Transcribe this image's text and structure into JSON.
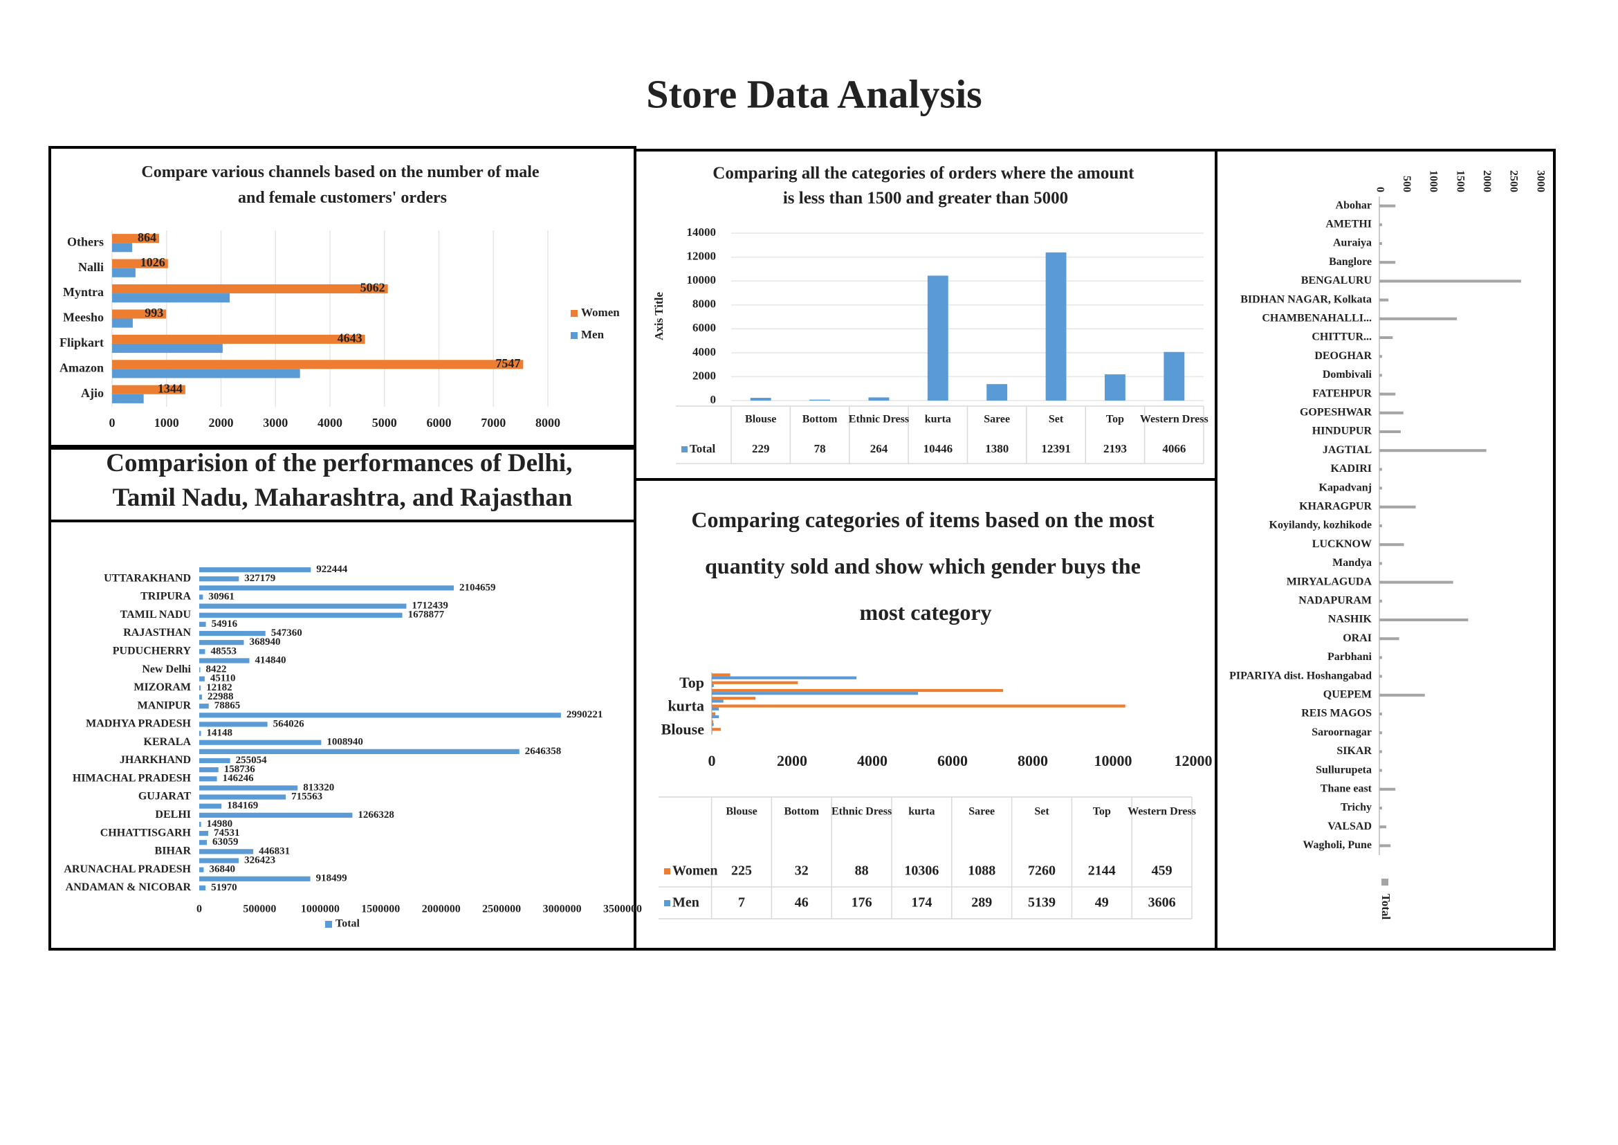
{
  "title": "Store Data Analysis",
  "chart_data": [
    {
      "type": "bar",
      "orientation": "horizontal",
      "title": "Compare various channels based on the number of male and female customers' orders",
      "categories": [
        "Ajio",
        "Amazon",
        "Flipkart",
        "Meesho",
        "Myntra",
        "Nalli",
        "Others"
      ],
      "series": [
        {
          "name": "Women",
          "color": "#ed7d31",
          "data_labels": true,
          "values": [
            1344,
            7547,
            4643,
            993,
            5062,
            1026,
            864
          ]
        },
        {
          "name": "Men",
          "color": "#5b9bd5",
          "values": [
            580,
            3450,
            2030,
            380,
            2160,
            430,
            370
          ]
        }
      ],
      "xlim": [
        0,
        8000
      ],
      "xticks": [
        0,
        1000,
        2000,
        3000,
        4000,
        5000,
        6000,
        7000,
        8000
      ],
      "grid": true,
      "legend": "right"
    },
    {
      "type": "bar",
      "orientation": "vertical",
      "title": "Comparing all the categories of orders where the amount is less than 1500 and greater than 5000",
      "y_axis_title": "Axis Title",
      "categories": [
        "Blouse",
        "Bottom",
        "Ethnic Dress",
        "kurta",
        "Saree",
        "Set",
        "Top",
        "Western Dress"
      ],
      "series": [
        {
          "name": "Total",
          "color": "#5b9bd5",
          "values": [
            229,
            78,
            264,
            10446,
            1380,
            12391,
            2193,
            4066
          ]
        }
      ],
      "ylim": [
        0,
        14000
      ],
      "yticks": [
        0,
        2000,
        4000,
        6000,
        8000,
        10000,
        12000,
        14000
      ],
      "grid": true,
      "data_table": true
    },
    {
      "type": "bar",
      "orientation": "horizontal",
      "title": "Comparision of the performances of Delhi, Tamil Nadu, Maharashtra, and Rajasthan",
      "categories": [
        "ANDAMAN & NICOBAR",
        null,
        "ARUNACHAL PRADESH",
        null,
        "BIHAR",
        null,
        "CHHATTISGARH",
        null,
        "DELHI",
        null,
        "GUJARAT",
        null,
        "HIMACHAL PRADESH",
        null,
        "JHARKHAND",
        null,
        "KERALA",
        null,
        "MADHYA PRADESH",
        null,
        "MANIPUR",
        null,
        "MIZORAM",
        null,
        "New Delhi",
        null,
        "PUDUCHERRY",
        null,
        "RAJASTHAN",
        null,
        "TAMIL NADU",
        null,
        "TRIPURA",
        null,
        "UTTARAKHAND",
        null
      ],
      "series": [
        {
          "name": "Total",
          "color": "#5b9bd5",
          "data_labels": true,
          "values": [
            51970,
            918499,
            36840,
            326423,
            446831,
            63059,
            74531,
            14980,
            1266328,
            184169,
            715563,
            813320,
            146246,
            158736,
            255054,
            2646358,
            1008940,
            14148,
            564026,
            2990221,
            78865,
            22988,
            12182,
            45110,
            8422,
            414840,
            48553,
            368940,
            547360,
            54916,
            1678877,
            1712439,
            30961,
            2104659,
            327179,
            922444
          ]
        }
      ],
      "xlim": [
        0,
        3500000
      ],
      "xticks": [
        0,
        500000,
        1000000,
        1500000,
        2000000,
        2500000,
        3000000,
        3500000
      ],
      "grid": false,
      "legend": "bottom"
    },
    {
      "type": "bar",
      "orientation": "horizontal",
      "title": "Comparing categories of items based on the most quantity sold and show which gender buys the most category",
      "categories": [
        "Blouse",
        "Bottom",
        "Ethnic Dress",
        "kurta",
        "Saree",
        "Set",
        "Top",
        "Western Dress"
      ],
      "series": [
        {
          "name": "Women",
          "color": "#ed7d31",
          "values": [
            225,
            32,
            88,
            10306,
            1088,
            7260,
            2144,
            459
          ]
        },
        {
          "name": "Men",
          "color": "#5b9bd5",
          "values": [
            7,
            46,
            176,
            174,
            289,
            5139,
            49,
            3606
          ]
        }
      ],
      "xlim": [
        0,
        12000
      ],
      "xticks": [
        0,
        2000,
        4000,
        6000,
        8000,
        10000,
        12000
      ],
      "grid": false,
      "data_table": true
    },
    {
      "type": "bar",
      "orientation": "horizontal",
      "categories": [
        "Abohar",
        "AMETHI",
        "Auraiya",
        "Banglore",
        "BENGALURU",
        "BIDHAN NAGAR, Kolkata",
        "CHAMBENAHALLI...",
        "CHITTUR...",
        "DEOGHAR",
        "Dombivali",
        "FATEHPUR",
        "GOPESHWAR",
        "HINDUPUR",
        "JAGTIAL",
        "KADIRI",
        "Kapadvanj",
        "KHARAGPUR",
        "Koyilandy, kozhikode",
        "LUCKNOW",
        "Mandya",
        "MIRYALAGUDA",
        "NADAPURAM",
        "NASHIK",
        "ORAI",
        "Parbhani",
        "PIPARIYA dist. Hoshangabad",
        "QUEPEM",
        "REIS MAGOS",
        "Saroornagar",
        "SIKAR",
        "Sullurupeta",
        "Thane east",
        "Trichy",
        "VALSAD",
        "Wagholi, Pune"
      ],
      "series": [
        {
          "name": "Total",
          "color": "#a5a5a5",
          "values": [
            300,
            50,
            50,
            300,
            2650,
            170,
            1450,
            250,
            50,
            50,
            300,
            450,
            400,
            2000,
            50,
            50,
            680,
            50,
            460,
            50,
            1380,
            50,
            1660,
            370,
            50,
            50,
            850,
            50,
            50,
            50,
            50,
            300,
            50,
            130,
            210
          ]
        }
      ],
      "xlim": [
        0,
        3000
      ],
      "xticks": [
        0,
        500,
        1000,
        1500,
        2000,
        2500,
        3000
      ],
      "grid": false,
      "legend": "bottom"
    }
  ]
}
